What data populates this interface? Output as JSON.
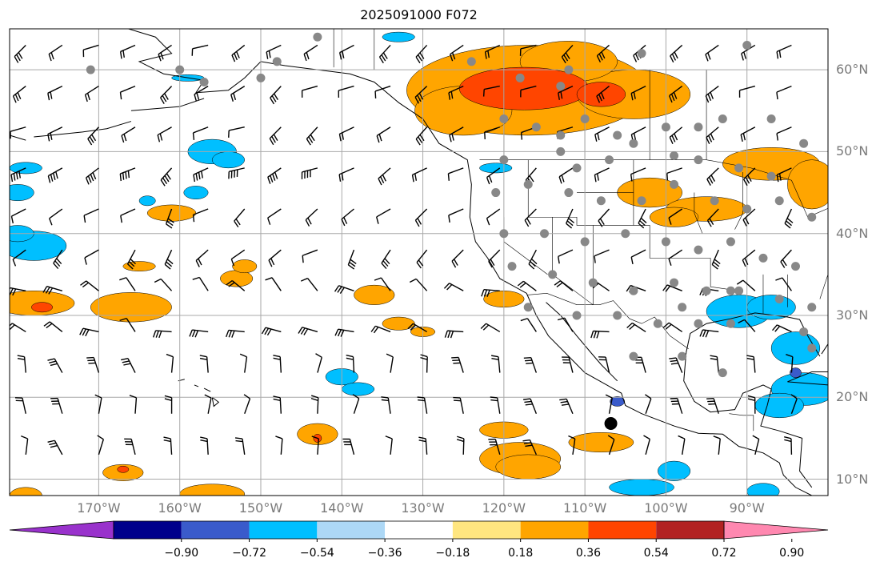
{
  "title": "2025091000 F072",
  "map": {
    "projection": "PlateCarree",
    "lon_range": [
      -181,
      -80
    ],
    "lat_range": [
      8,
      65
    ],
    "grid": true,
    "lon_ticks": [
      {
        "value": -170,
        "label": "170°W"
      },
      {
        "value": -160,
        "label": "160°W"
      },
      {
        "value": -150,
        "label": "150°W"
      },
      {
        "value": -140,
        "label": "140°W"
      },
      {
        "value": -130,
        "label": "130°W"
      },
      {
        "value": -120,
        "label": "120°W"
      },
      {
        "value": -110,
        "label": "110°W"
      },
      {
        "value": -100,
        "label": "100°W"
      },
      {
        "value": -90,
        "label": "90°W"
      }
    ],
    "lat_ticks": [
      {
        "value": 60,
        "label": "60°N"
      },
      {
        "value": 50,
        "label": "50°N"
      },
      {
        "value": 40,
        "label": "40°N"
      },
      {
        "value": 30,
        "label": "30°N"
      },
      {
        "value": 20,
        "label": "20°N"
      },
      {
        "value": 10,
        "label": "10°N"
      }
    ],
    "center_marker": {
      "lon": -106.8,
      "lat": 16.8
    }
  },
  "colorbar": {
    "levels": [
      -0.9,
      -0.72,
      -0.54,
      -0.36,
      -0.18,
      0.18,
      0.36,
      0.54,
      0.72,
      0.9
    ],
    "labels": [
      "−0.90",
      "−0.72",
      "−0.54",
      "−0.36",
      "−0.18",
      "0.18",
      "0.36",
      "0.54",
      "0.72",
      "0.90"
    ],
    "colors": [
      "#9932CC",
      "#00008B",
      "#3A5BCB",
      "#00BFFF",
      "#ADD8F6",
      "#FFFFFF",
      "#FFE680",
      "#FFA500",
      "#FF4500",
      "#B22222",
      "#FF88B0"
    ],
    "extend": "both"
  },
  "colors": {
    "land_outline": "#000000",
    "gridline": "#a8a8a8",
    "station_dot": "#888888",
    "tick_label": "#7a7a7a"
  }
}
